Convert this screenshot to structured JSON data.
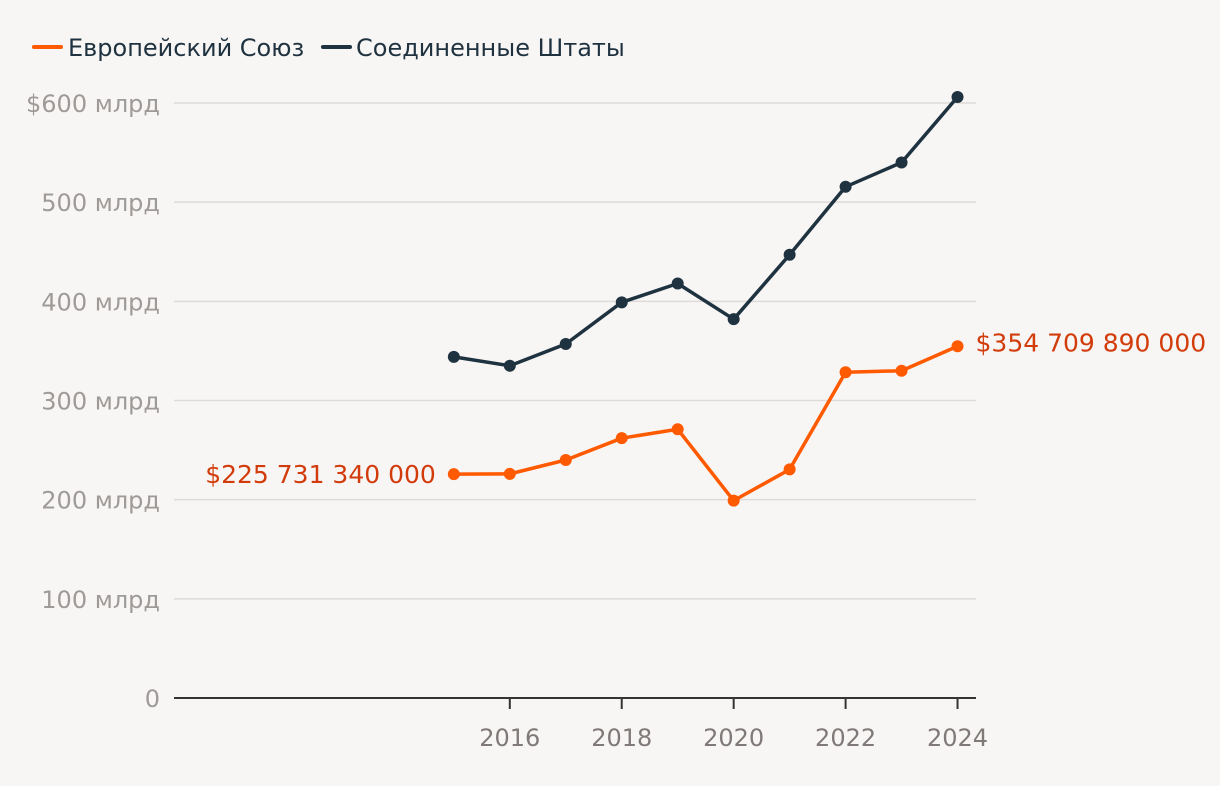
{
  "chart_data": {
    "type": "line",
    "title": "",
    "xlabel": "",
    "ylabel": "",
    "x": [
      2015,
      2016,
      2017,
      2018,
      2019,
      2020,
      2021,
      2022,
      2023,
      2024
    ],
    "x_ticks": [
      "2016",
      "2018",
      "2020",
      "2022",
      "2024"
    ],
    "x_tick_values": [
      2016,
      2018,
      2020,
      2022,
      2024
    ],
    "xlim": [
      2010,
      2024.33
    ],
    "ylim": [
      0,
      600
    ],
    "y_ticks": [
      0,
      100,
      200,
      300,
      400,
      500,
      600
    ],
    "y_tick_labels": [
      "0",
      "100 млрд",
      "200 млрд",
      "300 млрд",
      "400 млрд",
      "500 млрд",
      "$600 млрд"
    ],
    "grid": true,
    "legend_position": "top-left",
    "series": [
      {
        "name": "Европейский Союз",
        "color": "#ff5a00",
        "values": [
          225.7,
          226.0,
          240.0,
          262.0,
          271.0,
          199.0,
          230.5,
          328.5,
          330.0,
          354.7
        ],
        "start_label": "$225 731 340 000",
        "end_label": "$354 709 890 000",
        "label_color": "#d23c0b"
      },
      {
        "name": "Соединенные Штаты",
        "color": "#1f3240",
        "values": [
          344.0,
          335.0,
          357.0,
          399.0,
          418.0,
          382.0,
          447.0,
          515.5,
          540.0,
          606.0
        ]
      }
    ]
  }
}
